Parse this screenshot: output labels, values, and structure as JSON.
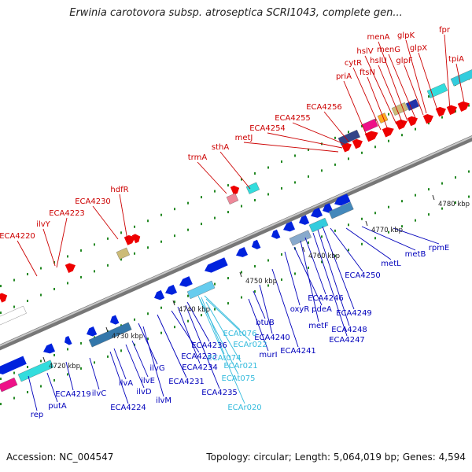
{
  "title": "Erwinia carotovora subsp. atroseptica SCRI1043, complete gen...",
  "footer": {
    "accession": "Accession: NC_004547",
    "summary": "Topology: circular; Length: 5,064,019 bp; Genes: 4,594"
  },
  "colors": {
    "forward_label": "#cc0000",
    "reverse_label": "#0000bb",
    "rna_label": "#33bbdd",
    "forward_gene": "#ee0000",
    "reverse_gene": "#0022dd",
    "backbone": "#888888",
    "tick_dot": "#228822"
  },
  "ticks": [
    "4720 kbp",
    "4730 kbp",
    "4740 kbp",
    "4750 kbp",
    "4760 kbp",
    "4770 kbp",
    "4780 kbp"
  ],
  "labels_top": [
    "ECA4220",
    "ilvY",
    "ECA4223",
    "ECA4230",
    "hdfR",
    "trmA",
    "sthA",
    "metJ",
    "ECA4254",
    "ECA4255",
    "ECA4256",
    "priA",
    "cytR",
    "ftsN",
    "hslV",
    "hslU",
    "menA",
    "menG",
    "glpF",
    "glpK",
    "glpX",
    "fpr",
    "tpiA"
  ],
  "labels_bottom": [
    "rep",
    "putA",
    "ECA4219",
    "ilvC",
    "ECA4224",
    "ilvA",
    "ilvD",
    "ilvE",
    "ilvG",
    "ilvM",
    "ECA4231",
    "ECA4233",
    "ECA4234",
    "ECA4235",
    "ECA4236",
    "murI",
    "btuB",
    "ECA4240",
    "ECA4241",
    "oxyR",
    "pdeA",
    "metF",
    "ECA4246",
    "ECA4247",
    "ECA4248",
    "ECA4249",
    "ECA4250",
    "metL",
    "metB",
    "rpmE"
  ],
  "labels_rna": [
    "ECAt076",
    "ECAr022",
    "ECAt074",
    "ECAr021",
    "ECAt075",
    "ECAr020"
  ]
}
